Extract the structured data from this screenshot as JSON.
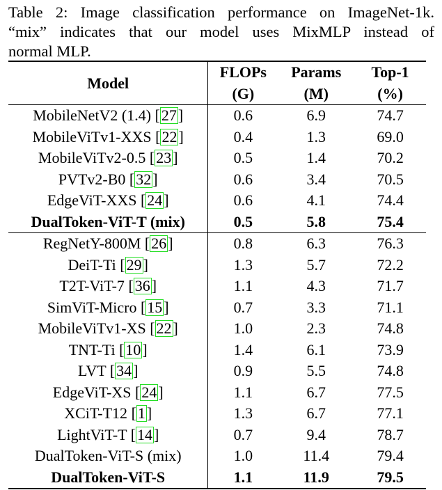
{
  "caption": {
    "line1": "Table 2: Image classification performance on ImageNet-1k.",
    "line2": "“mix” indicates that our model uses MixMLP instead of",
    "line3": "normal MLP."
  },
  "header": {
    "model": "Model",
    "flops": "FLOPs",
    "flops_unit": "(G)",
    "params": "Params",
    "params_unit": "(M)",
    "top1": "Top-1",
    "top1_unit": "(%)"
  },
  "group1": [
    {
      "name": "MobileNetV2 (1.4)",
      "cite": "27",
      "flops": "0.6",
      "params": "6.9",
      "top1": "74.7",
      "bold": false
    },
    {
      "name": "MobileViTv1-XXS",
      "cite": "22",
      "flops": "0.4",
      "params": "1.3",
      "top1": "69.0",
      "bold": false
    },
    {
      "name": "MobileViTv2-0.5",
      "cite": "23",
      "flops": "0.5",
      "params": "1.4",
      "top1": "70.2",
      "bold": false
    },
    {
      "name": "PVTv2-B0",
      "cite": "32",
      "flops": "0.6",
      "params": "3.4",
      "top1": "70.5",
      "bold": false
    },
    {
      "name": "EdgeViT-XXS",
      "cite": "24",
      "flops": "0.6",
      "params": "4.1",
      "top1": "74.4",
      "bold": false
    },
    {
      "name": "DualToken-ViT-T (mix)",
      "cite": "",
      "flops": "0.5",
      "params": "5.8",
      "top1": "75.4",
      "bold": true
    }
  ],
  "group2": [
    {
      "name": "RegNetY-800M",
      "cite": "26",
      "flops": "0.8",
      "params": "6.3",
      "top1": "76.3",
      "bold": false
    },
    {
      "name": "DeiT-Ti",
      "cite": "29",
      "flops": "1.3",
      "params": "5.7",
      "top1": "72.2",
      "bold": false
    },
    {
      "name": "T2T-ViT-7",
      "cite": "36",
      "flops": "1.1",
      "params": "4.3",
      "top1": "71.7",
      "bold": false
    },
    {
      "name": "SimViT-Micro",
      "cite": "15",
      "flops": "0.7",
      "params": "3.3",
      "top1": "71.1",
      "bold": false
    },
    {
      "name": "MobileViTv1-XS",
      "cite": "22",
      "flops": "1.0",
      "params": "2.3",
      "top1": "74.8",
      "bold": false
    },
    {
      "name": "TNT-Ti",
      "cite": "10",
      "flops": "1.4",
      "params": "6.1",
      "top1": "73.9",
      "bold": false
    },
    {
      "name": "LVT",
      "cite": "34",
      "flops": "0.9",
      "params": "5.5",
      "top1": "74.8",
      "bold": false
    },
    {
      "name": "EdgeViT-XS",
      "cite": "24",
      "flops": "1.1",
      "params": "6.7",
      "top1": "77.5",
      "bold": false
    },
    {
      "name": "XCiT-T12",
      "cite": "1",
      "flops": "1.3",
      "params": "6.7",
      "top1": "77.1",
      "bold": false
    },
    {
      "name": "LightViT-T",
      "cite": "14",
      "flops": "0.7",
      "params": "9.4",
      "top1": "78.7",
      "bold": false
    },
    {
      "name": "DualToken-ViT-S (mix)",
      "cite": "",
      "flops": "1.0",
      "params": "11.4",
      "top1": "79.4",
      "bold": false
    },
    {
      "name": "DualToken-ViT-S",
      "cite": "",
      "flops": "1.1",
      "params": "11.9",
      "top1": "79.5",
      "bold": true
    }
  ]
}
